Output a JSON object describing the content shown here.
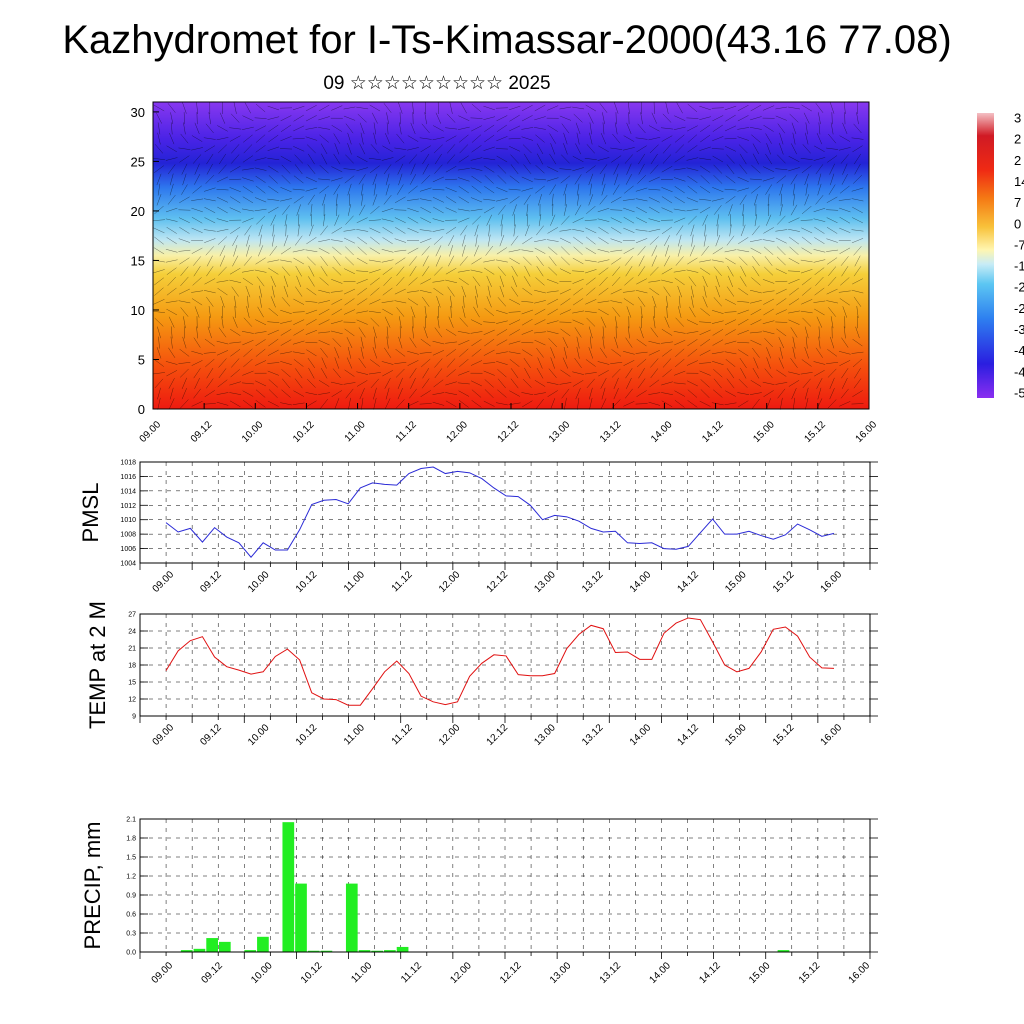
{
  "page": {
    "title": "Kazhydromet for I-Ts-Kimassar-2000(43.16 77.08)",
    "subtitle": "09 ☆☆☆☆☆☆☆☆☆ 2025"
  },
  "colors": {
    "pmsl_line": "#2a2ad6",
    "temp_line": "#e01010",
    "precip_bar": "#22ee22",
    "grid": "#000000"
  },
  "chart_data": [
    {
      "type": "heatmap",
      "name": "cross-section",
      "x_ticks": [
        "09.00",
        "09.12",
        "10.00",
        "10.12",
        "11.00",
        "11.12",
        "12.00",
        "12.12",
        "13.00",
        "13.12",
        "14.00",
        "14.12",
        "15.00",
        "15.12",
        "16.00"
      ],
      "y_ticks": [
        "0",
        "5",
        "10",
        "15",
        "20",
        "25",
        "30"
      ],
      "ylim": [
        0,
        31
      ],
      "overlay": "wind barbs",
      "colorbar_labels": [
        "3",
        "2",
        "2",
        "14",
        "7",
        "0",
        "-7",
        "-1",
        "-2",
        "-2",
        "-3",
        "-4",
        "-4",
        "-5"
      ],
      "colorbar_range": [
        -55,
        35
      ]
    },
    {
      "type": "line",
      "name": "pmsl",
      "ylabel": "PMSL",
      "x_ticks": [
        "09.00",
        "09.12",
        "10.00",
        "10.12",
        "11.00",
        "11.12",
        "12.00",
        "12.12",
        "13.00",
        "13.12",
        "14.00",
        "14.12",
        "15.00",
        "15.12",
        "16.00"
      ],
      "y_ticks": [
        "1004",
        "1006",
        "1008",
        "1010",
        "1012",
        "1014",
        "1016",
        "1018"
      ],
      "ylim": [
        1004,
        1018
      ],
      "values": [
        1009.6,
        1008.3,
        1008.8,
        1006.9,
        1008.9,
        1007.6,
        1006.8,
        1004.8,
        1006.8,
        1005.8,
        1005.8,
        1008.6,
        1012.1,
        1012.7,
        1012.8,
        1012.2,
        1014.4,
        1015.1,
        1014.9,
        1014.8,
        1016.4,
        1017.1,
        1017.3,
        1016.4,
        1016.7,
        1016.5,
        1015.7,
        1014.4,
        1013.3,
        1013.2,
        1012.0,
        1010.0,
        1010.6,
        1010.4,
        1009.8,
        1008.8,
        1008.3,
        1008.4,
        1006.8,
        1006.7,
        1006.8,
        1006.0,
        1005.9,
        1006.3,
        1008.2,
        1010.1,
        1008.0,
        1008.0,
        1008.4,
        1007.8,
        1007.3,
        1007.9,
        1009.4,
        1008.6,
        1007.7,
        1008.1
      ]
    },
    {
      "type": "line",
      "name": "temp",
      "ylabel": "TEMP at 2 M",
      "x_ticks": [
        "09.00",
        "09.12",
        "10.00",
        "10.12",
        "11.00",
        "11.12",
        "12.00",
        "12.12",
        "13.00",
        "13.12",
        "14.00",
        "14.12",
        "15.00",
        "15.12",
        "16.00"
      ],
      "y_ticks": [
        "9",
        "12",
        "15",
        "18",
        "21",
        "24",
        "27"
      ],
      "ylim": [
        9,
        27
      ],
      "values": [
        17.0,
        20.5,
        22.3,
        23.0,
        19.4,
        17.7,
        17.1,
        16.4,
        16.8,
        19.5,
        20.8,
        18.9,
        13.1,
        12.0,
        11.9,
        10.9,
        10.9,
        13.8,
        16.8,
        18.7,
        16.5,
        12.5,
        11.5,
        11.0,
        11.5,
        16.0,
        18.3,
        19.8,
        19.6,
        16.3,
        16.1,
        16.1,
        16.5,
        20.9,
        23.4,
        25.0,
        24.4,
        20.2,
        20.3,
        19.0,
        19.0,
        23.6,
        25.4,
        26.3,
        26.0,
        22.1,
        18.0,
        16.8,
        17.4,
        20.3,
        24.3,
        24.7,
        23.1,
        19.4,
        17.5,
        17.4
      ]
    },
    {
      "type": "bar",
      "name": "precip",
      "ylabel": "PRECIP, mm",
      "x_ticks": [
        "09.00",
        "09.12",
        "10.00",
        "10.12",
        "11.00",
        "11.12",
        "12.00",
        "12.12",
        "13.00",
        "13.12",
        "14.00",
        "14.12",
        "15.00",
        "15.12",
        "16.00"
      ],
      "y_ticks": [
        "0.0",
        "0.3",
        "0.6",
        "0.9",
        "1.2",
        "1.5",
        "1.8",
        "2.1"
      ],
      "ylim": [
        0,
        2.1
      ],
      "values": [
        0,
        0,
        0.03,
        0.05,
        0.22,
        0.16,
        0,
        0.03,
        0.24,
        0,
        2.05,
        1.08,
        0.02,
        0.02,
        0,
        1.08,
        0.03,
        0.02,
        0.03,
        0.08,
        0,
        0,
        0,
        0,
        0,
        0,
        0,
        0,
        0,
        0,
        0,
        0,
        0,
        0,
        0,
        0,
        0,
        0,
        0,
        0,
        0,
        0,
        0,
        0,
        0,
        0,
        0,
        0,
        0,
        0.03,
        0,
        0,
        0,
        0,
        0,
        0
      ]
    }
  ]
}
